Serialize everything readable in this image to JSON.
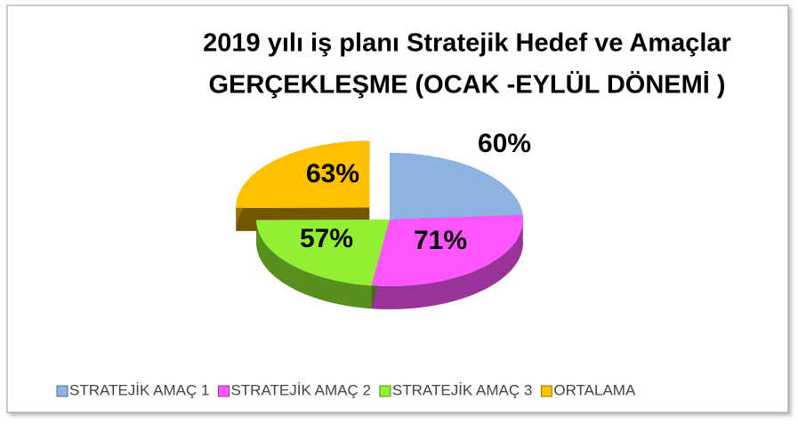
{
  "chart_data": {
    "type": "pie3d",
    "title": [
      "2019 yılı iş planı Stratejik Hedef ve Amaçlar",
      "GERÇEKLEŞME (OCAK -EYLÜL DÖNEMİ )"
    ],
    "categories": [
      "STRATEJİK AMAÇ 1",
      "STRATEJİK AMAÇ 2",
      "STRATEJİK AMAÇ 3",
      "ORTALAMA"
    ],
    "values": [
      60,
      71,
      57,
      63
    ],
    "value_labels": [
      "60%",
      "71%",
      "57%",
      "63%"
    ],
    "colors": [
      "#8db3e2",
      "#ff55ff",
      "#92f032",
      "#ffc000"
    ],
    "legend": "bottom"
  }
}
